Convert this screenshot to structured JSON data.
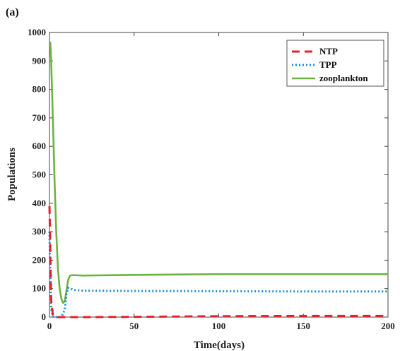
{
  "chart_data": {
    "type": "line",
    "panel_label": "(a)",
    "xlabel": "Time(days)",
    "ylabel": "Populations",
    "xlim": [
      0,
      200
    ],
    "ylim": [
      0,
      1000
    ],
    "xticks": [
      0,
      50,
      100,
      150,
      200
    ],
    "yticks": [
      0,
      100,
      200,
      300,
      400,
      500,
      600,
      700,
      800,
      900,
      1000
    ],
    "grid": false,
    "legend_position": "top-right",
    "series": [
      {
        "name": "NTP",
        "color": "#e8202a",
        "style": "dashed",
        "x": [
          0,
          0.3,
          1,
          2,
          3,
          5,
          10,
          20,
          50,
          100,
          150,
          200
        ],
        "y": [
          390,
          300,
          60,
          8,
          1,
          0,
          0,
          0,
          1,
          3,
          4,
          4
        ]
      },
      {
        "name": "TPP",
        "color": "#1b8bd1",
        "style": "dotted",
        "x": [
          0,
          0.3,
          1,
          2,
          3,
          5,
          7,
          9,
          10,
          11,
          12,
          15,
          20,
          50,
          100,
          150,
          200
        ],
        "y": [
          300,
          200,
          30,
          2,
          0,
          0,
          0,
          25,
          80,
          103,
          100,
          95,
          93,
          92,
          91,
          90,
          90
        ]
      },
      {
        "name": "zooplankton",
        "color": "#6db33f",
        "style": "solid",
        "x": [
          0,
          0.5,
          1,
          2,
          3,
          4,
          5,
          6,
          7,
          8,
          9,
          10,
          11,
          12,
          13,
          15,
          20,
          50,
          100,
          150,
          200
        ],
        "y": [
          960,
          965,
          900,
          700,
          480,
          300,
          170,
          100,
          65,
          50,
          55,
          90,
          130,
          145,
          147,
          147,
          146,
          148,
          151,
          151,
          151
        ]
      }
    ]
  }
}
